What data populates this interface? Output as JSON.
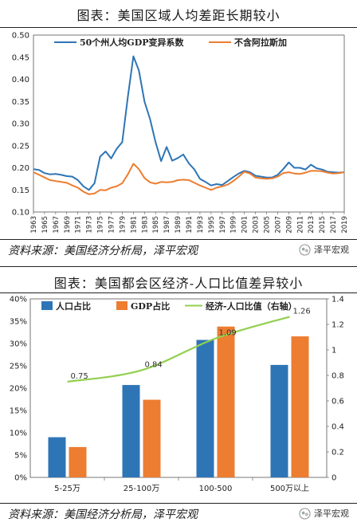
{
  "chart_top": {
    "title": "图表：美国区域人均差距长期较小",
    "chart_data": {
      "type": "line",
      "x": [
        1963,
        1964,
        1965,
        1966,
        1967,
        1968,
        1969,
        1970,
        1971,
        1972,
        1973,
        1974,
        1975,
        1976,
        1977,
        1978,
        1979,
        1980,
        1981,
        1982,
        1983,
        1984,
        1985,
        1986,
        1987,
        1988,
        1989,
        1990,
        1991,
        1992,
        1993,
        1994,
        1995,
        1996,
        1997,
        1998,
        1999,
        2000,
        2001,
        2002,
        2003,
        2004,
        2005,
        2006,
        2007,
        2008,
        2009,
        2010,
        2011,
        2012,
        2013,
        2014,
        2015,
        2016,
        2017,
        2018,
        2019
      ],
      "x_tick_labels": [
        "1963",
        "1965",
        "1967",
        "1969",
        "1971",
        "1973",
        "1975",
        "1977",
        "1979",
        "1981",
        "1983",
        "1985",
        "1987",
        "1989",
        "1991",
        "1993",
        "1995",
        "1997",
        "1999",
        "2001",
        "2003",
        "2005",
        "2007",
        "2009",
        "2011",
        "2013",
        "2015",
        "2017",
        "2019"
      ],
      "ylim": [
        0.1,
        0.5
      ],
      "y_ticks": [
        "0.10",
        "0.15",
        "0.20",
        "0.25",
        "0.30",
        "0.35",
        "0.40",
        "0.45",
        "0.50"
      ],
      "legend_position": "top",
      "series": [
        {
          "name": "50个州人均GDP变异系数",
          "color": "#2e75b6",
          "values": [
            0.197,
            0.195,
            0.188,
            0.185,
            0.186,
            0.184,
            0.181,
            0.18,
            0.172,
            0.158,
            0.15,
            0.165,
            0.225,
            0.237,
            0.221,
            0.243,
            0.258,
            0.36,
            0.452,
            0.42,
            0.35,
            0.31,
            0.258,
            0.215,
            0.247,
            0.216,
            0.222,
            0.23,
            0.21,
            0.196,
            0.175,
            0.168,
            0.16,
            0.163,
            0.161,
            0.17,
            0.179,
            0.187,
            0.193,
            0.19,
            0.182,
            0.18,
            0.178,
            0.178,
            0.184,
            0.197,
            0.212,
            0.2,
            0.2,
            0.196,
            0.207,
            0.199,
            0.196,
            0.191,
            0.19,
            0.189,
            0.19
          ]
        },
        {
          "name": "不含阿拉斯加",
          "color": "#ed7d31",
          "values": [
            0.19,
            0.184,
            0.178,
            0.172,
            0.17,
            0.168,
            0.166,
            0.16,
            0.155,
            0.146,
            0.14,
            0.142,
            0.15,
            0.149,
            0.155,
            0.158,
            0.165,
            0.185,
            0.209,
            0.197,
            0.177,
            0.167,
            0.164,
            0.168,
            0.167,
            0.168,
            0.172,
            0.173,
            0.172,
            0.166,
            0.16,
            0.155,
            0.15,
            0.155,
            0.158,
            0.162,
            0.17,
            0.18,
            0.191,
            0.187,
            0.178,
            0.176,
            0.175,
            0.176,
            0.18,
            0.188,
            0.19,
            0.187,
            0.186,
            0.189,
            0.193,
            0.193,
            0.192,
            0.189,
            0.187,
            0.188,
            0.19
          ]
        }
      ]
    },
    "source": "资料来源：美国经济分析局，泽平宏观",
    "logo_text": "泽平宏观"
  },
  "chart_bottom": {
    "title": "图表：美国都会区经济-人口比值差异较小",
    "chart_data": {
      "type": "bar",
      "categories": [
        "5-25万",
        "25-100万",
        "100-500",
        "500万以上"
      ],
      "series": [
        {
          "name": "人口占比",
          "color": "#2e75b6",
          "axis": "left",
          "values": [
            0.09,
            0.207,
            0.308,
            0.252
          ]
        },
        {
          "name": "GDP占比",
          "color": "#ed7d31",
          "axis": "left",
          "values": [
            0.068,
            0.174,
            0.338,
            0.316
          ]
        },
        {
          "name": "经济-人口比值（右轴）",
          "color": "#92d050",
          "axis": "right",
          "type": "line",
          "values": [
            0.75,
            0.84,
            1.09,
            1.26
          ],
          "data_labels": [
            "0.75",
            "0.84",
            "1.09",
            "1.26"
          ]
        }
      ],
      "ylim_left": [
        0,
        0.4
      ],
      "y_ticks_left": [
        "0%",
        "5%",
        "10%",
        "15%",
        "20%",
        "25%",
        "30%",
        "35%",
        "40%"
      ],
      "ylim_right": [
        0,
        1.4
      ],
      "y_ticks_right": [
        "0",
        "0.2",
        "0.4",
        "0.6",
        "0.8",
        "1",
        "1.2",
        "1.4"
      ],
      "legend_position": "top"
    },
    "source": "资料来源：美国经济分析局，泽平宏观",
    "logo_text": "泽平宏观"
  }
}
